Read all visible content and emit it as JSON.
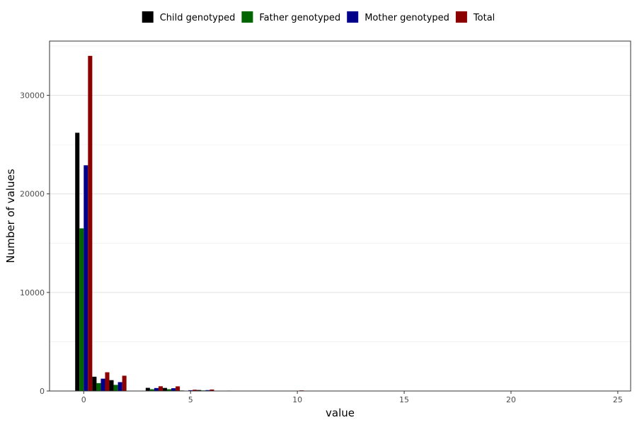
{
  "chart_data": {
    "type": "bar",
    "xlabel": "value",
    "ylabel": "Number of values",
    "xlim": [
      -1.6,
      25.6
    ],
    "ylim": [
      0,
      35500
    ],
    "xticks": [
      0,
      5,
      10,
      15,
      20,
      25
    ],
    "yticks": [
      0,
      10000,
      20000,
      30000
    ],
    "minor_grid_y": [
      5000,
      15000,
      25000,
      35000
    ],
    "legend_position": "top",
    "bar_width": 0.2,
    "categories": [
      0,
      1,
      2,
      3,
      4,
      5,
      6,
      7,
      8,
      9,
      10
    ],
    "series": [
      {
        "name": "Child genotyped",
        "color": "#000000",
        "x": [
          -0.3,
          0.5,
          1.3,
          3.0,
          3.8,
          4.6,
          5.4,
          6.2,
          7.0,
          7.8,
          9.4
        ],
        "values": [
          26200,
          1450,
          1100,
          320,
          310,
          50,
          100,
          30,
          10,
          5,
          5
        ]
      },
      {
        "name": "Father genotyped",
        "color": "#006400",
        "x": [
          -0.1,
          0.7,
          1.5,
          3.2,
          4.0,
          4.8,
          5.6,
          6.4,
          7.2,
          8.0,
          9.6
        ],
        "values": [
          16500,
          800,
          620,
          180,
          180,
          20,
          60,
          15,
          5,
          3,
          3
        ]
      },
      {
        "name": "Mother genotyped",
        "color": "#00008b",
        "x": [
          0.1,
          0.9,
          1.7,
          3.4,
          4.2,
          5.0,
          5.8,
          6.6,
          7.4,
          8.2,
          9.8
        ],
        "values": [
          22900,
          1250,
          900,
          300,
          280,
          80,
          90,
          25,
          8,
          4,
          4
        ]
      },
      {
        "name": "Total",
        "color": "#8b0000",
        "x": [
          0.3,
          1.1,
          1.9,
          3.6,
          4.4,
          5.2,
          6.0,
          6.8,
          7.6,
          8.4,
          10.2
        ],
        "values": [
          34000,
          1900,
          1550,
          480,
          470,
          130,
          150,
          40,
          15,
          8,
          60
        ]
      }
    ]
  }
}
